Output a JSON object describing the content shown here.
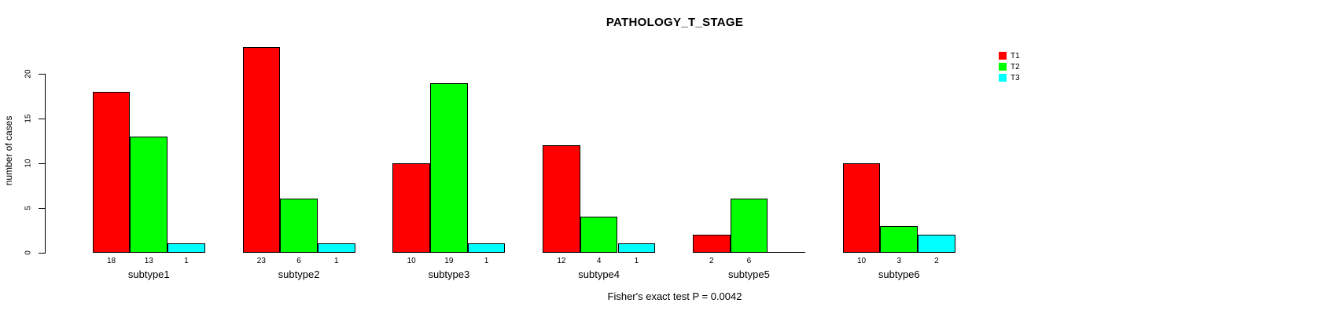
{
  "chart_data": {
    "type": "bar",
    "title": "PATHOLOGY_T_STAGE",
    "ylabel": "number of cases",
    "xlabel": "",
    "categories": [
      "subtype1",
      "subtype2",
      "subtype3",
      "subtype4",
      "subtype5",
      "subtype6"
    ],
    "series": [
      {
        "name": "T1",
        "color": "#FF0000",
        "values": [
          18,
          23,
          10,
          12,
          2,
          10
        ]
      },
      {
        "name": "T2",
        "color": "#00FF00",
        "values": [
          13,
          6,
          19,
          4,
          6,
          3
        ]
      },
      {
        "name": "T3",
        "color": "#00FFFF",
        "values": [
          1,
          1,
          1,
          1,
          0,
          2
        ]
      }
    ],
    "yticks": [
      0,
      5,
      10,
      15,
      20
    ],
    "ylim": [
      0,
      23
    ],
    "grid": false,
    "bar_value_labels": true,
    "zero_value_has_no_label": true,
    "legend_position": "right",
    "annotation": "Fisher's exact test P = 0.0042",
    "colors": {
      "axis": "#000000",
      "text": "#000000",
      "background": "#ffffff"
    }
  }
}
